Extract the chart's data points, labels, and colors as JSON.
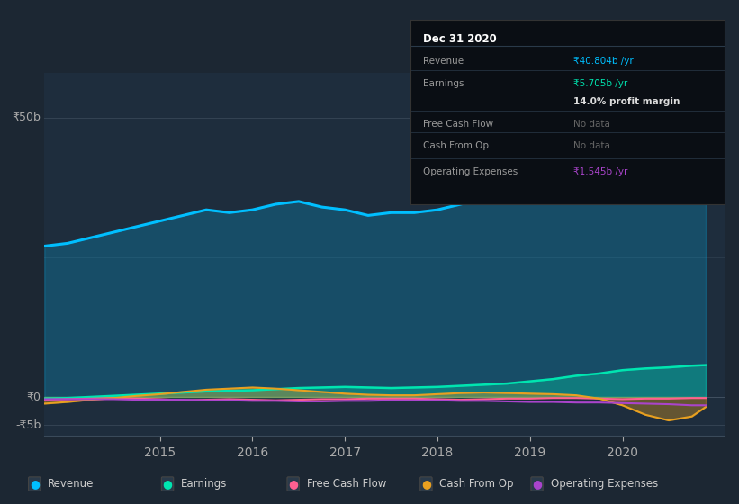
{
  "bg_color": "#1c2733",
  "chart_bg": "#1c2733",
  "plot_bg": "#1e2d3d",
  "ylabel_top": "₹50b",
  "ylabel_zero": "₹0",
  "ylabel_bottom": "-₹5b",
  "x_labels": [
    "2015",
    "2016",
    "2017",
    "2018",
    "2019",
    "2020"
  ],
  "years": [
    2013.75,
    2014.0,
    2014.25,
    2014.5,
    2014.75,
    2015.0,
    2015.25,
    2015.5,
    2015.75,
    2016.0,
    2016.25,
    2016.5,
    2016.75,
    2017.0,
    2017.25,
    2017.5,
    2017.75,
    2018.0,
    2018.25,
    2018.5,
    2018.75,
    2019.0,
    2019.25,
    2019.5,
    2019.75,
    2020.0,
    2020.25,
    2020.5,
    2020.75,
    2020.9
  ],
  "revenue": [
    27,
    27.5,
    28.5,
    29.5,
    30.5,
    31.5,
    32.5,
    33.5,
    33.0,
    33.5,
    34.5,
    35.0,
    34.0,
    33.5,
    32.5,
    33.0,
    33.0,
    33.5,
    34.5,
    35.5,
    37.0,
    41.0,
    48.0,
    52.5,
    53.5,
    51.0,
    46.5,
    44.0,
    41.5,
    41.0
  ],
  "earnings": [
    -0.3,
    -0.2,
    0.0,
    0.2,
    0.4,
    0.6,
    0.8,
    1.0,
    1.1,
    1.2,
    1.4,
    1.6,
    1.7,
    1.8,
    1.7,
    1.6,
    1.7,
    1.8,
    2.0,
    2.2,
    2.4,
    2.8,
    3.2,
    3.8,
    4.2,
    4.8,
    5.1,
    5.3,
    5.6,
    5.7
  ],
  "free_cash_flow": [
    -0.5,
    -0.4,
    -0.3,
    -0.2,
    -0.3,
    -0.4,
    -0.6,
    -0.5,
    -0.4,
    -0.5,
    -0.6,
    -0.5,
    -0.4,
    -0.4,
    -0.3,
    -0.3,
    -0.3,
    -0.4,
    -0.5,
    -0.4,
    -0.3,
    -0.3,
    -0.2,
    -0.2,
    -0.3,
    -0.4,
    -0.3,
    -0.3,
    -0.2,
    -0.2
  ],
  "cash_from_op": [
    -1.2,
    -0.9,
    -0.5,
    -0.2,
    0.2,
    0.5,
    0.9,
    1.3,
    1.5,
    1.7,
    1.5,
    1.2,
    0.9,
    0.6,
    0.4,
    0.3,
    0.3,
    0.5,
    0.7,
    0.8,
    0.7,
    0.6,
    0.5,
    0.3,
    -0.3,
    -1.5,
    -3.2,
    -4.2,
    -3.5,
    -1.8
  ],
  "op_expenses": [
    -0.4,
    -0.4,
    -0.4,
    -0.4,
    -0.5,
    -0.5,
    -0.5,
    -0.6,
    -0.6,
    -0.7,
    -0.7,
    -0.8,
    -0.8,
    -0.7,
    -0.7,
    -0.6,
    -0.6,
    -0.6,
    -0.7,
    -0.7,
    -0.8,
    -0.9,
    -0.9,
    -1.0,
    -1.0,
    -1.1,
    -1.2,
    -1.3,
    -1.5,
    -1.5
  ],
  "revenue_color": "#00bfff",
  "earnings_color": "#00e5b0",
  "fcf_color": "#ff6090",
  "cashop_color": "#e8a020",
  "opex_color": "#aa44cc",
  "ylim_min": -7,
  "ylim_max": 58,
  "xmin": 2013.75,
  "xmax": 2021.1,
  "legend_items": [
    {
      "label": "Revenue",
      "color": "#00bfff"
    },
    {
      "label": "Earnings",
      "color": "#00e5b0"
    },
    {
      "label": "Free Cash Flow",
      "color": "#ff6090"
    },
    {
      "label": "Cash From Op",
      "color": "#e8a020"
    },
    {
      "label": "Operating Expenses",
      "color": "#aa44cc"
    }
  ],
  "tooltip": {
    "title": "Dec 31 2020",
    "rows": [
      {
        "label": "Revenue",
        "value": "₹40.804b /yr",
        "value_color": "#00bfff"
      },
      {
        "label": "Earnings",
        "value": "₹5.705b /yr",
        "value_color": "#00e5b0"
      },
      {
        "label": "",
        "value": "14.0% profit margin",
        "value_color": "#dddddd"
      },
      {
        "label": "Free Cash Flow",
        "value": "No data",
        "value_color": "#666666"
      },
      {
        "label": "Cash From Op",
        "value": "No data",
        "value_color": "#666666"
      },
      {
        "label": "Operating Expenses",
        "value": "₹1.545b /yr",
        "value_color": "#aa44cc"
      }
    ]
  }
}
